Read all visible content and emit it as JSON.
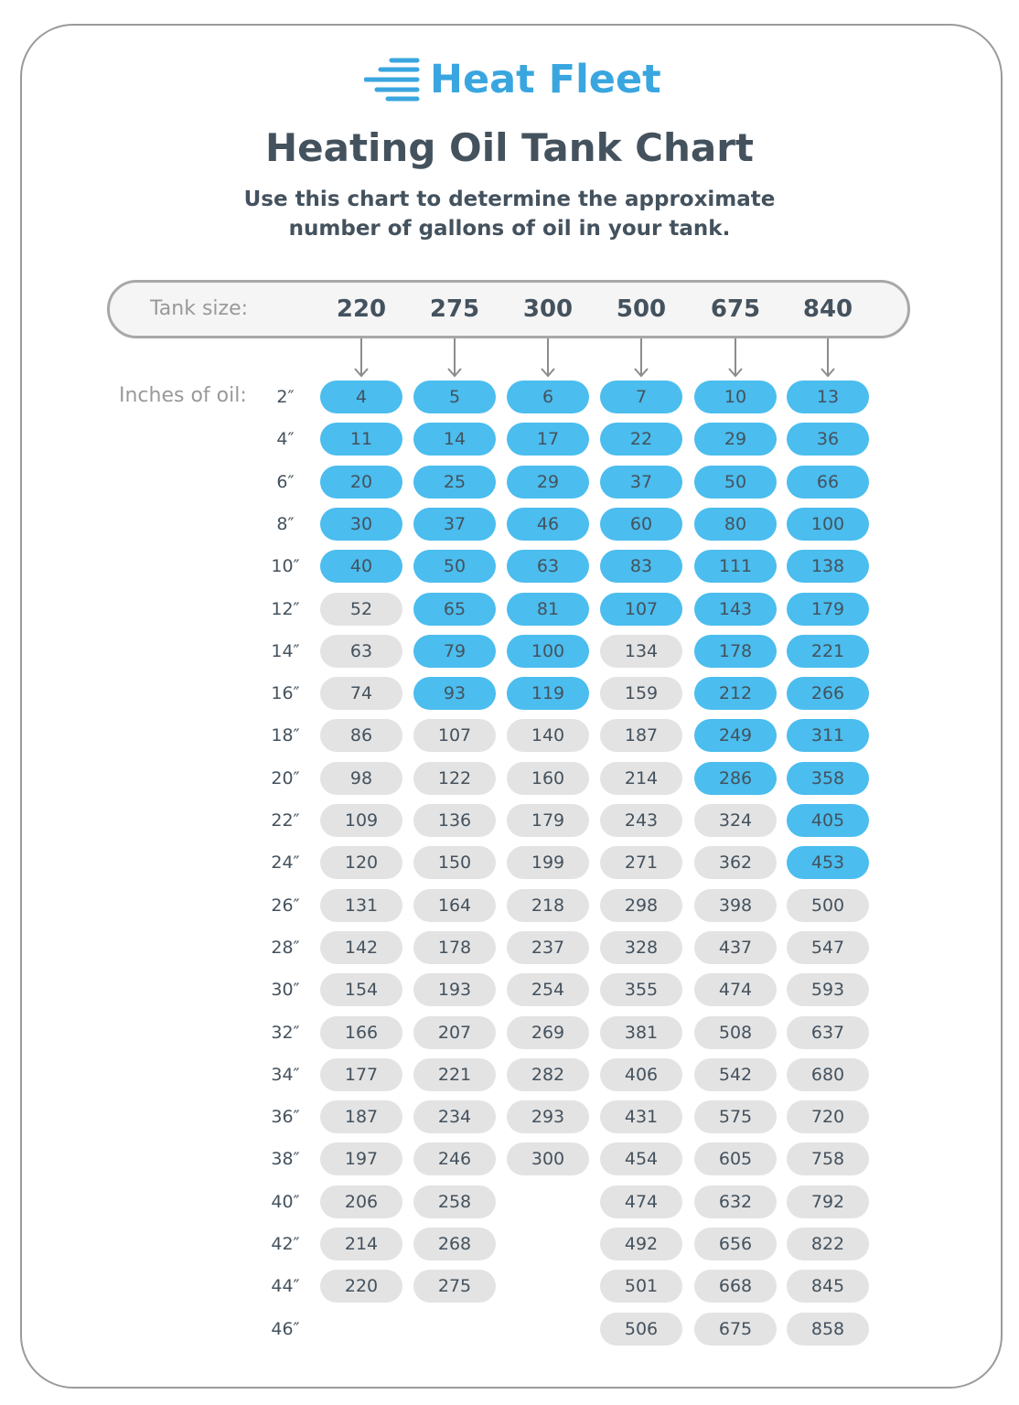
{
  "brand": {
    "name": "Heat Fleet",
    "logo_icon": "speed-lines-icon",
    "color": "#3aa6df"
  },
  "title": "Heating Oil Tank Chart",
  "subtitle_lines": [
    "Use this chart to determine the approximate",
    "number of gallons of oil in your tank."
  ],
  "colors": {
    "highlight": "#4bbdee",
    "standard": "#e3e3e3",
    "text": "#44525e",
    "label": "#999999"
  },
  "chart_data": {
    "type": "table",
    "title": "Heating Oil Tank Chart",
    "column_header_label": "Tank size:",
    "row_header_label": "Inches of oil:",
    "tank_sizes": [
      "220",
      "275",
      "300",
      "500",
      "675",
      "840"
    ],
    "inches": [
      "2″",
      "4″",
      "6″",
      "8″",
      "10″",
      "12″",
      "14″",
      "16″",
      "18″",
      "20″",
      "22″",
      "24″",
      "26″",
      "28″",
      "30″",
      "32″",
      "34″",
      "36″",
      "38″",
      "40″",
      "42″",
      "44″",
      "46″"
    ],
    "gallons": [
      [
        4,
        5,
        6,
        7,
        10,
        13
      ],
      [
        11,
        14,
        17,
        22,
        29,
        36
      ],
      [
        20,
        25,
        29,
        37,
        50,
        66
      ],
      [
        30,
        37,
        46,
        60,
        80,
        100
      ],
      [
        40,
        50,
        63,
        83,
        111,
        138
      ],
      [
        52,
        65,
        81,
        107,
        143,
        179
      ],
      [
        63,
        79,
        100,
        134,
        178,
        221
      ],
      [
        74,
        93,
        119,
        159,
        212,
        266
      ],
      [
        86,
        107,
        140,
        187,
        249,
        311
      ],
      [
        98,
        122,
        160,
        214,
        286,
        358
      ],
      [
        109,
        136,
        179,
        243,
        324,
        405
      ],
      [
        120,
        150,
        199,
        271,
        362,
        453
      ],
      [
        131,
        164,
        218,
        298,
        398,
        500
      ],
      [
        142,
        178,
        237,
        328,
        437,
        547
      ],
      [
        154,
        193,
        254,
        355,
        474,
        593
      ],
      [
        166,
        207,
        269,
        381,
        508,
        637
      ],
      [
        177,
        221,
        282,
        406,
        542,
        680
      ],
      [
        187,
        234,
        293,
        431,
        575,
        720
      ],
      [
        197,
        246,
        300,
        454,
        605,
        758
      ],
      [
        206,
        258,
        null,
        474,
        632,
        792
      ],
      [
        214,
        268,
        null,
        492,
        656,
        822
      ],
      [
        220,
        275,
        null,
        501,
        668,
        845
      ],
      [
        null,
        null,
        null,
        506,
        675,
        858
      ]
    ],
    "highlighted_rows_per_column": [
      5,
      8,
      8,
      6,
      10,
      12
    ]
  }
}
